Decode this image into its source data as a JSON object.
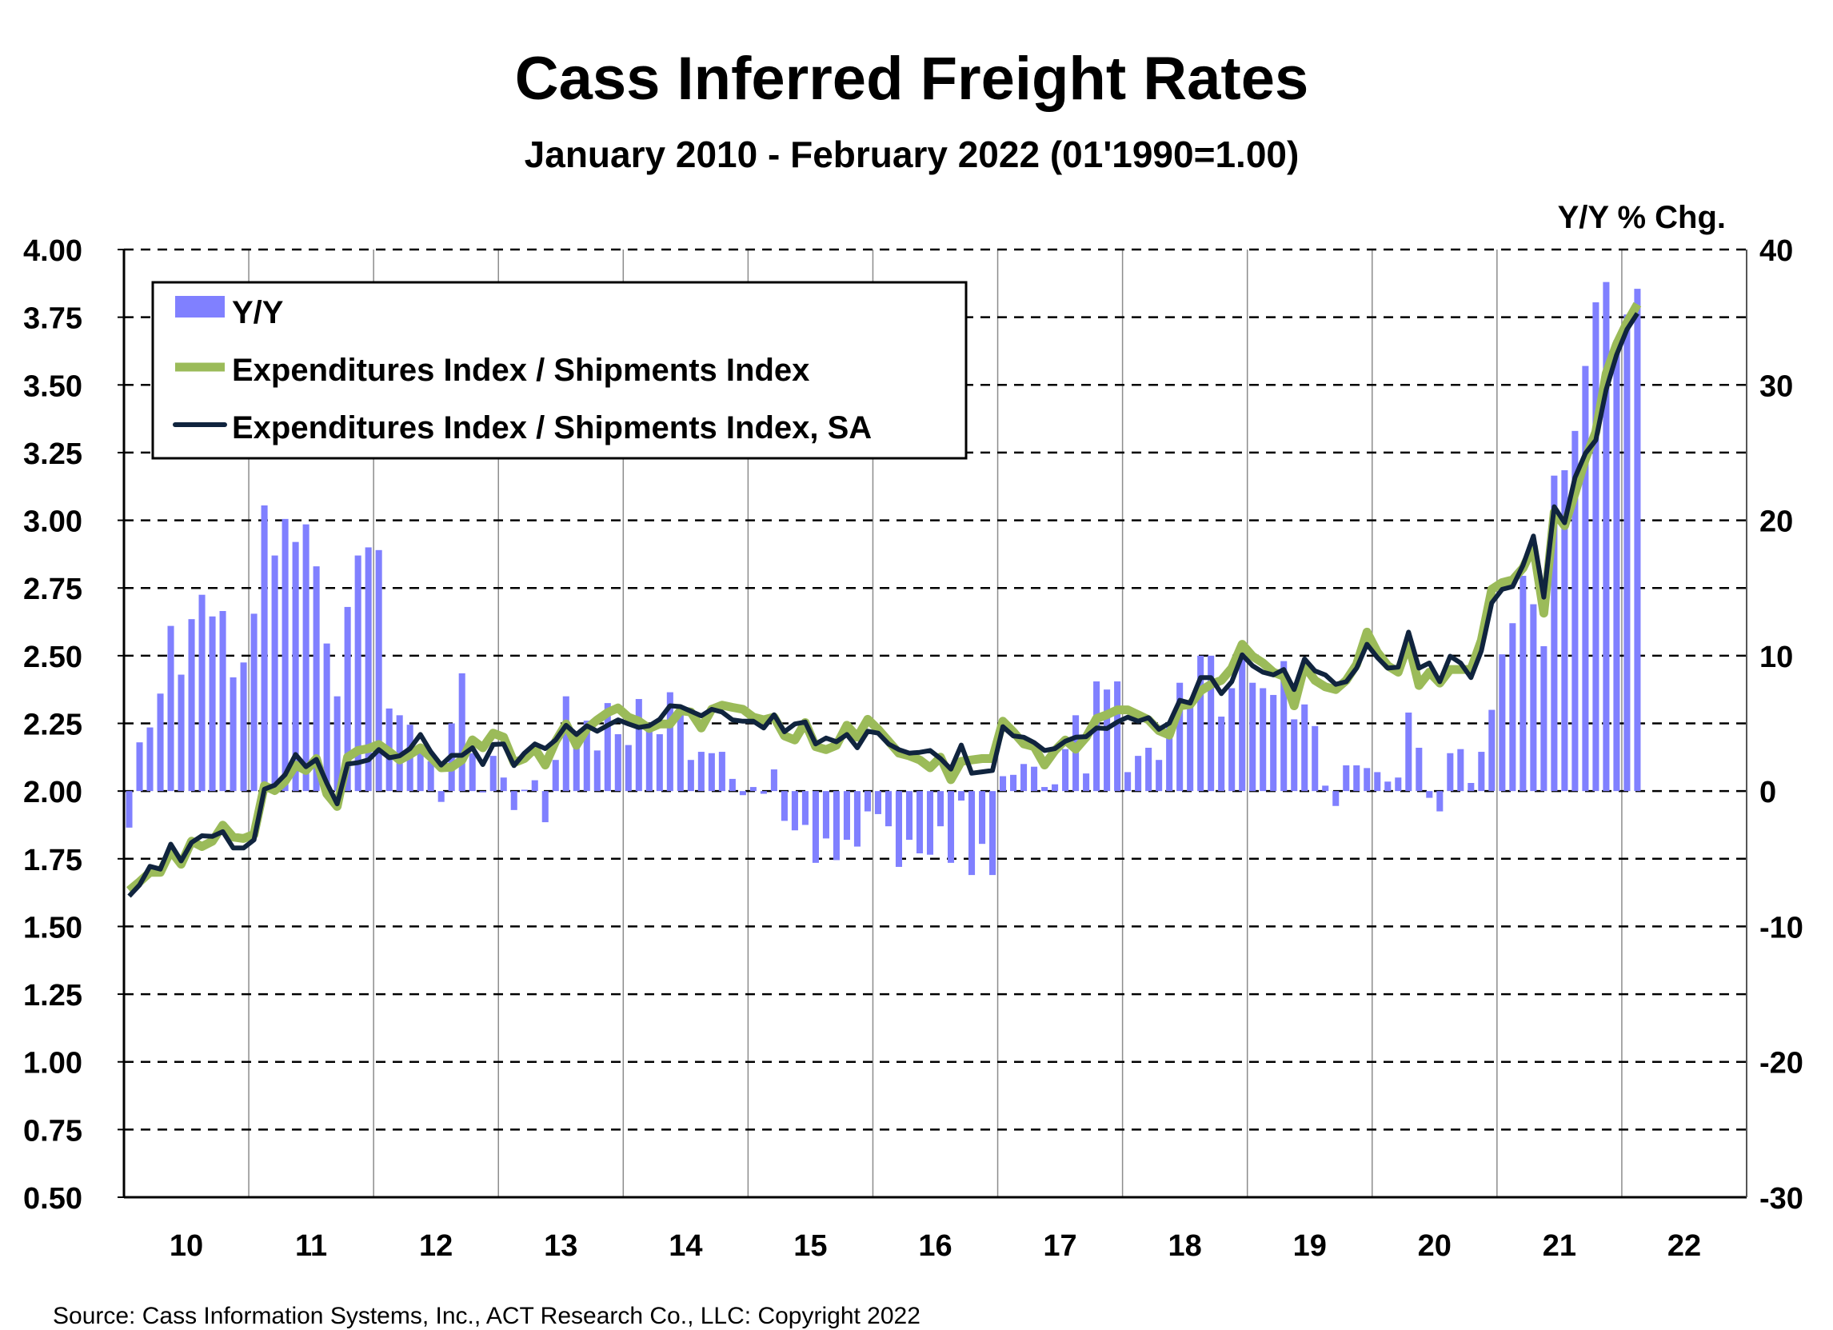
{
  "chart_data": {
    "type": "bar+line",
    "title": "Cass Inferred Freight Rates",
    "subtitle": "January 2010 - February 2022 (01'1990=1.00)",
    "right_axis_label": "Y/Y % Chg.",
    "source": "Source: Cass Information Systems, Inc., ACT Research Co., LLC: Copyright 2022",
    "x_tick_labels": [
      "10",
      "11",
      "12",
      "13",
      "14",
      "15",
      "16",
      "17",
      "18",
      "19",
      "20",
      "21",
      "22"
    ],
    "x_range": [
      "2010-01",
      "2022-12"
    ],
    "start_month": "2010-01",
    "left_axis": {
      "ylim": [
        0.5,
        4.0
      ],
      "ticks": [
        "0.50",
        "0.75",
        "1.00",
        "1.25",
        "1.50",
        "1.75",
        "2.00",
        "2.25",
        "2.50",
        "2.75",
        "3.00",
        "3.25",
        "3.50",
        "3.75",
        "4.00"
      ]
    },
    "right_axis": {
      "ylim": [
        -30,
        40
      ],
      "ticks": [
        "-30",
        "-20",
        "-10",
        "0",
        "10",
        "20",
        "30",
        "40"
      ]
    },
    "grid": {
      "horizontal": "dashed",
      "vertical": "solid-yearly"
    },
    "legend_placement": "top-left",
    "legend": [
      "Y/Y",
      "Expenditures Index / Shipments Index",
      "Expenditures Index / Shipments Index, SA"
    ],
    "colors": {
      "yoy": "#8080ff",
      "index": "#9bbb59",
      "index_sa": "#10243e"
    },
    "series": [
      {
        "name": "Y/Y",
        "axis": "right",
        "kind": "bar",
        "values": [
          -2.7,
          3.6,
          4.7,
          7.2,
          12.2,
          8.6,
          12.7,
          14.5,
          12.9,
          13.3,
          8.4,
          9.5,
          13.1,
          21.1,
          17.4,
          20.1,
          18.4,
          19.7,
          16.6,
          10.9,
          7.0,
          13.6,
          17.4,
          18.0,
          17.8,
          6.1,
          5.6,
          4.9,
          3.4,
          2.2,
          -0.8,
          5.0,
          8.7,
          2.8,
          -0.1,
          2.6,
          1.0,
          -1.4,
          0.1,
          0.8,
          -2.3,
          2.3,
          7.0,
          3.8,
          5.2,
          3.0,
          6.5,
          4.2,
          3.4,
          6.8,
          5.0,
          4.2,
          7.3,
          5.7,
          2.3,
          2.9,
          2.8,
          2.9,
          0.9,
          -0.3,
          0.3,
          -0.2,
          1.6,
          -2.2,
          -2.9,
          -2.5,
          -5.3,
          -3.5,
          -5.1,
          -3.6,
          -4.1,
          -1.5,
          -1.7,
          -2.6,
          -5.6,
          -3.6,
          -4.6,
          -4.7,
          -2.6,
          -5.3,
          -0.7,
          -6.2,
          -3.9,
          -6.2,
          1.1,
          1.2,
          2.0,
          1.8,
          0.3,
          0.5,
          3.1,
          5.6,
          1.3,
          8.1,
          7.5,
          8.1,
          1.4,
          2.6,
          3.2,
          2.3,
          4.8,
          8.0,
          6.6,
          10.0,
          10.0,
          5.5,
          7.6,
          10.9,
          8.0,
          7.6,
          7.1,
          9.6,
          5.3,
          6.4,
          4.8,
          0.4,
          -1.1,
          1.9,
          1.9,
          1.7,
          1.4,
          0.7,
          1.0,
          5.8,
          3.2,
          -0.5,
          -1.5,
          2.8,
          3.1,
          0.6,
          2.9,
          6.0,
          10.1,
          12.4,
          15.9,
          13.8,
          10.7,
          23.3,
          23.7,
          26.6,
          31.4,
          36.1,
          37.6,
          33.3,
          35.2,
          37.1
        ]
      },
      {
        "name": "Expenditures Index / Shipments Index",
        "axis": "left",
        "kind": "line",
        "values": [
          1.633,
          1.665,
          1.7,
          1.7,
          1.78,
          1.73,
          1.815,
          1.795,
          1.815,
          1.874,
          1.83,
          1.825,
          1.84,
          2.02,
          2.002,
          2.037,
          2.096,
          2.076,
          2.12,
          1.99,
          1.943,
          2.125,
          2.15,
          2.157,
          2.172,
          2.145,
          2.115,
          2.135,
          2.16,
          2.125,
          2.086,
          2.088,
          2.115,
          2.189,
          2.16,
          2.214,
          2.199,
          2.105,
          2.12,
          2.157,
          2.096,
          2.184,
          2.248,
          2.169,
          2.231,
          2.263,
          2.29,
          2.307,
          2.273,
          2.258,
          2.231,
          2.248,
          2.248,
          2.297,
          2.292,
          2.233,
          2.302,
          2.317,
          2.309,
          2.302,
          2.273,
          2.263,
          2.273,
          2.204,
          2.189,
          2.253,
          2.164,
          2.153,
          2.169,
          2.243,
          2.199,
          2.265,
          2.228,
          2.184,
          2.14,
          2.13,
          2.115,
          2.086,
          2.125,
          2.042,
          2.11,
          2.115,
          2.12,
          2.12,
          2.258,
          2.219,
          2.174,
          2.164,
          2.096,
          2.15,
          2.189,
          2.155,
          2.199,
          2.268,
          2.282,
          2.3,
          2.3,
          2.282,
          2.263,
          2.223,
          2.207,
          2.315,
          2.32,
          2.37,
          2.394,
          2.409,
          2.454,
          2.542,
          2.498,
          2.473,
          2.439,
          2.424,
          2.315,
          2.463,
          2.409,
          2.385,
          2.375,
          2.409,
          2.468,
          2.587,
          2.513,
          2.463,
          2.439,
          2.547,
          2.39,
          2.439,
          2.399,
          2.449,
          2.449,
          2.449,
          2.557,
          2.745,
          2.77,
          2.78,
          2.824,
          2.903,
          2.657,
          3.03,
          2.98,
          3.1,
          3.227,
          3.326,
          3.542,
          3.65,
          3.73,
          3.798
        ]
      },
      {
        "name": "Expenditures Index / Shipments Index, SA",
        "axis": "left",
        "kind": "line",
        "values": [
          1.612,
          1.653,
          1.722,
          1.712,
          1.804,
          1.742,
          1.81,
          1.835,
          1.833,
          1.85,
          1.79,
          1.79,
          1.82,
          2.007,
          2.022,
          2.061,
          2.135,
          2.09,
          2.117,
          2.03,
          1.953,
          2.1,
          2.105,
          2.115,
          2.153,
          2.123,
          2.13,
          2.157,
          2.209,
          2.145,
          2.096,
          2.132,
          2.132,
          2.16,
          2.098,
          2.172,
          2.174,
          2.094,
          2.14,
          2.174,
          2.157,
          2.189,
          2.243,
          2.209,
          2.241,
          2.221,
          2.243,
          2.263,
          2.248,
          2.235,
          2.241,
          2.265,
          2.315,
          2.312,
          2.295,
          2.278,
          2.302,
          2.292,
          2.263,
          2.258,
          2.258,
          2.233,
          2.282,
          2.219,
          2.248,
          2.255,
          2.174,
          2.196,
          2.182,
          2.209,
          2.16,
          2.221,
          2.214,
          2.174,
          2.153,
          2.14,
          2.143,
          2.15,
          2.12,
          2.081,
          2.17,
          2.066,
          2.071,
          2.076,
          2.238,
          2.204,
          2.199,
          2.179,
          2.15,
          2.157,
          2.184,
          2.199,
          2.201,
          2.233,
          2.231,
          2.255,
          2.273,
          2.258,
          2.271,
          2.228,
          2.251,
          2.335,
          2.325,
          2.419,
          2.419,
          2.36,
          2.404,
          2.503,
          2.463,
          2.439,
          2.429,
          2.449,
          2.375,
          2.488,
          2.444,
          2.429,
          2.394,
          2.404,
          2.454,
          2.542,
          2.493,
          2.454,
          2.458,
          2.587,
          2.454,
          2.473,
          2.404,
          2.498,
          2.473,
          2.419,
          2.518,
          2.695,
          2.745,
          2.755,
          2.834,
          2.942,
          2.716,
          3.05,
          2.991,
          3.158,
          3.247,
          3.296,
          3.483,
          3.611,
          3.705,
          3.764
        ]
      }
    ]
  }
}
